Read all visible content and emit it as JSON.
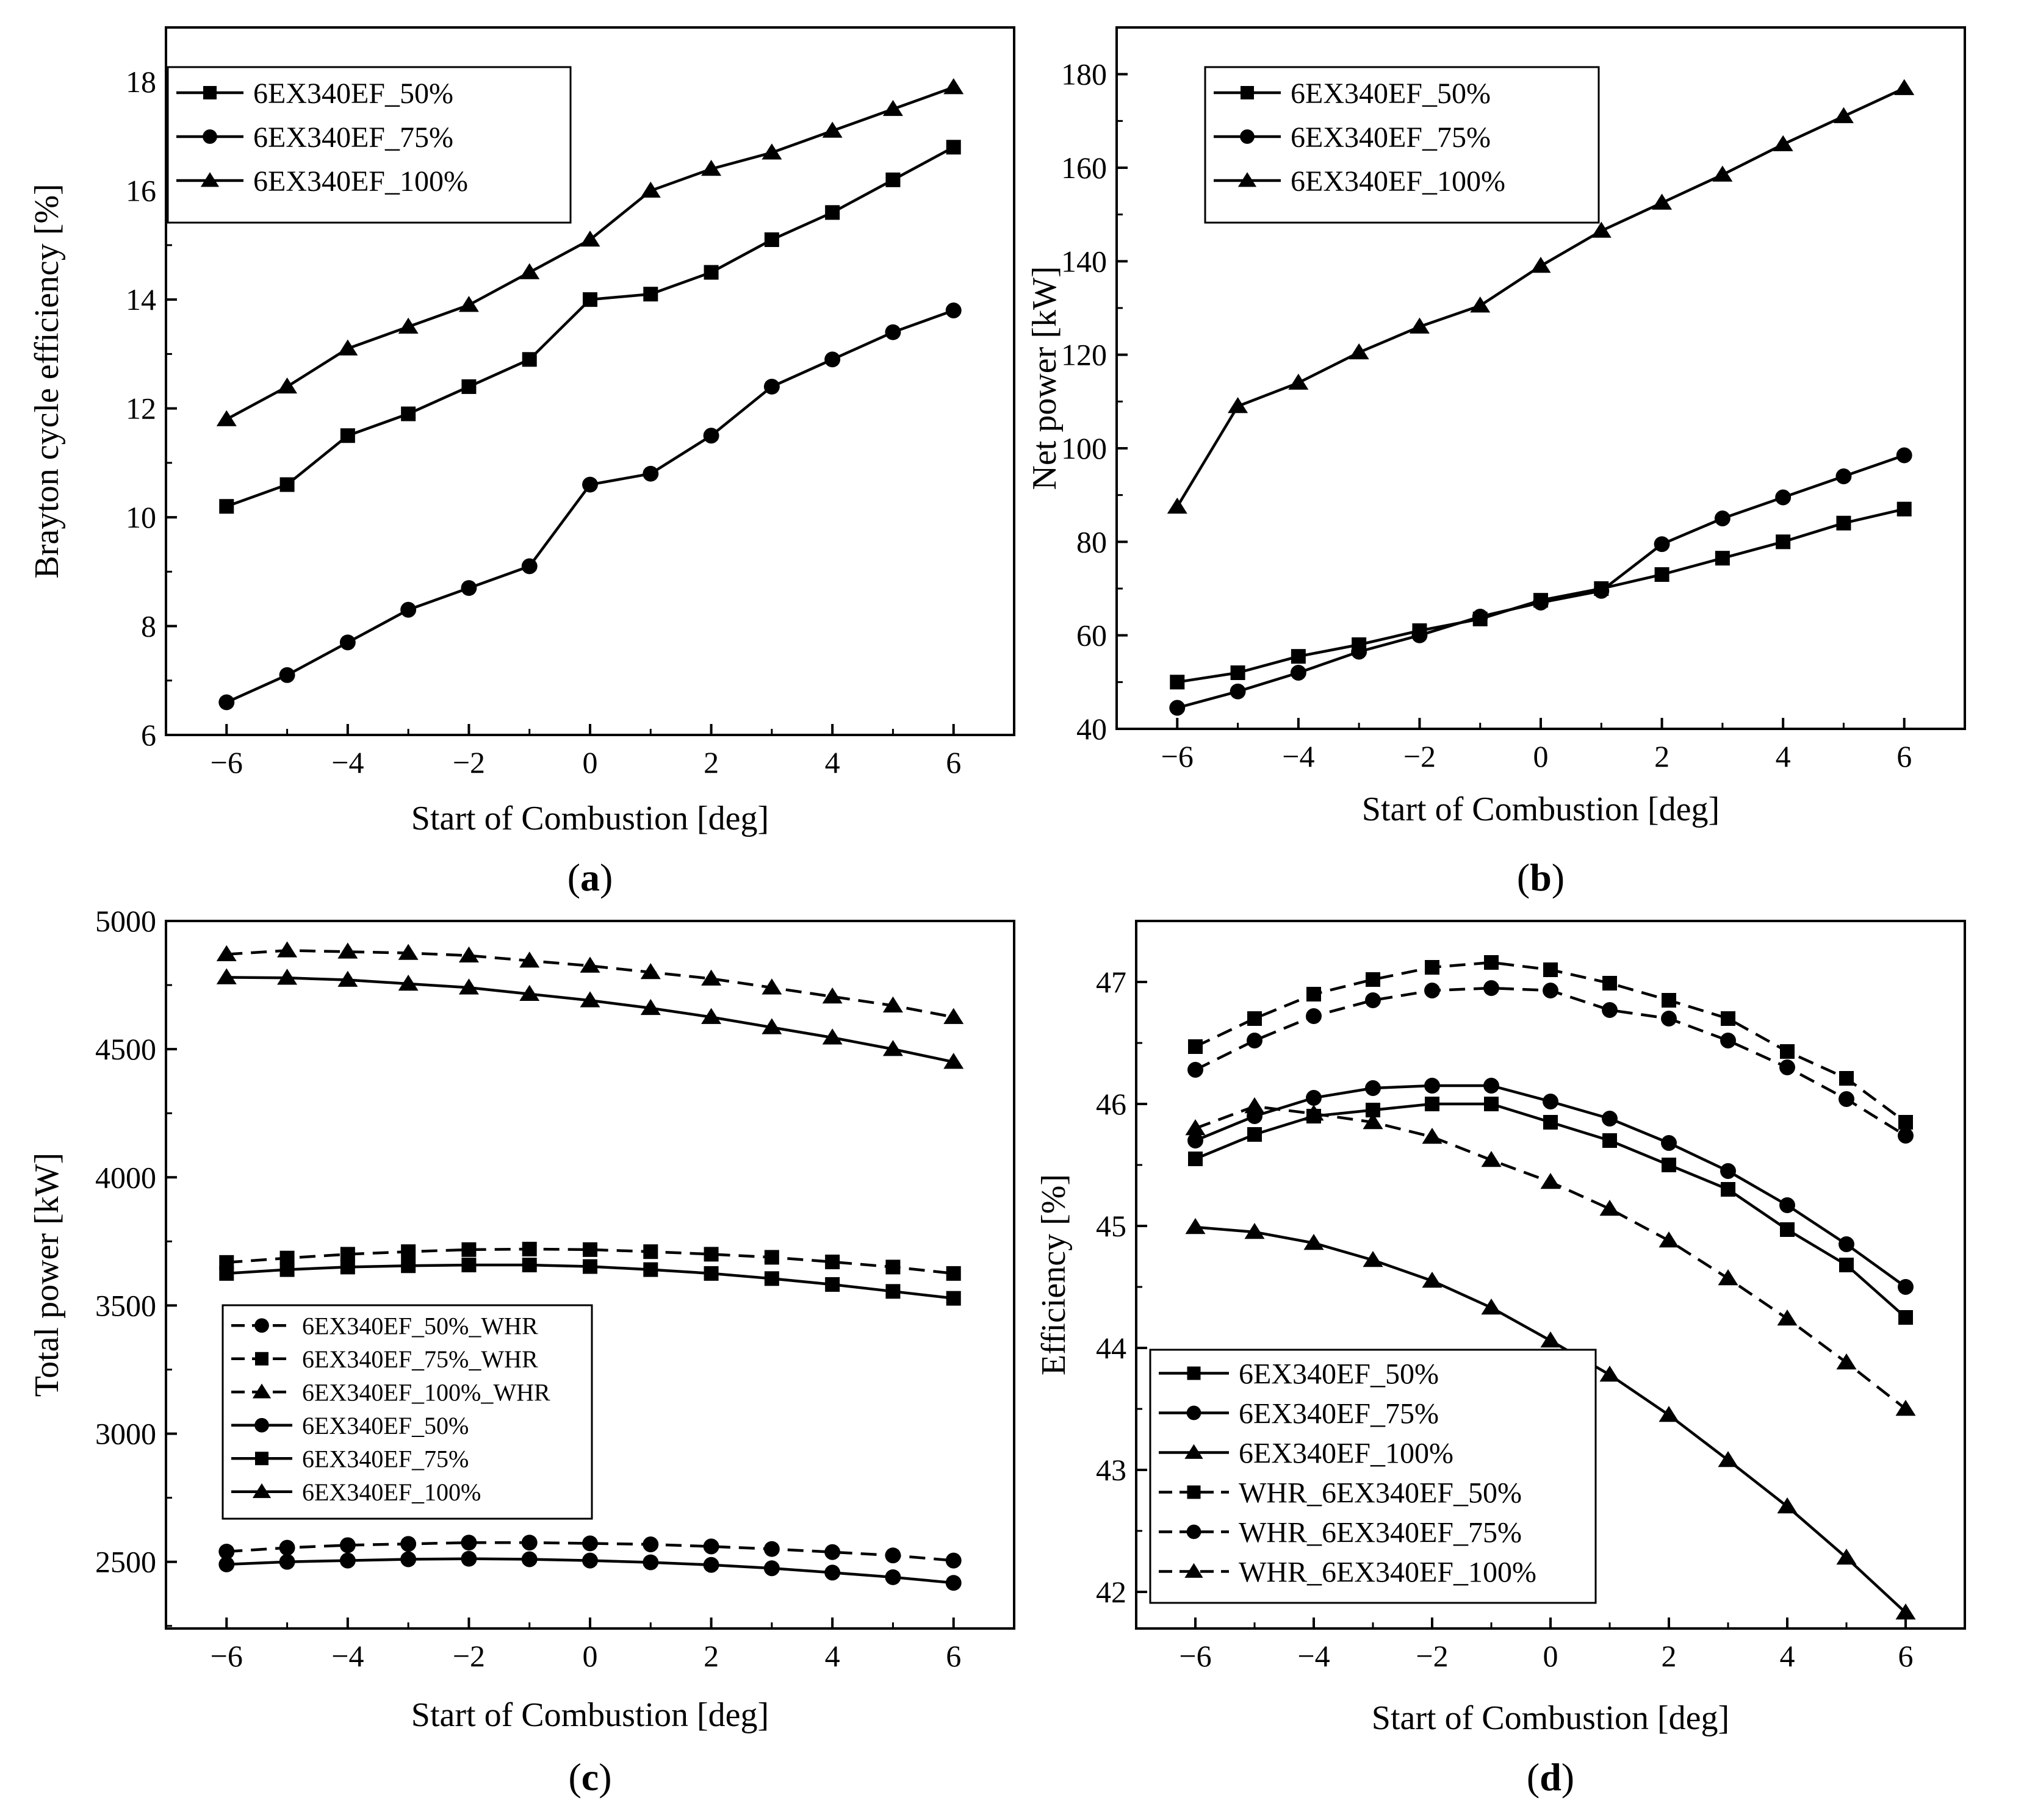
{
  "chart_data": [
    {
      "panel": "(a)",
      "panel_letter": "a",
      "type": "line",
      "xlabel": "Start of Combustion [deg]",
      "ylabel": "Brayton cycle efficiency [%]",
      "xlim": [
        -7,
        7
      ],
      "ylim": [
        6,
        19
      ],
      "xticks": [
        -6,
        -4,
        -2,
        0,
        2,
        4,
        6
      ],
      "yticks": [
        6,
        8,
        10,
        12,
        14,
        16,
        18
      ],
      "legend_position": "top-left",
      "x": [
        -6,
        -5,
        -4,
        -3,
        -2,
        -1,
        0,
        1,
        2,
        3,
        4,
        5,
        6
      ],
      "series": [
        {
          "name": "6EX340EF_50%",
          "marker": "square",
          "dash": "solid",
          "values": [
            10.2,
            10.6,
            11.5,
            11.9,
            12.4,
            12.9,
            14.0,
            14.1,
            14.5,
            15.1,
            15.6,
            16.2,
            16.8
          ]
        },
        {
          "name": "6EX340EF_75%",
          "marker": "circle",
          "dash": "solid",
          "values": [
            6.6,
            7.1,
            7.7,
            8.3,
            8.7,
            9.1,
            10.6,
            10.8,
            11.5,
            12.4,
            12.9,
            13.4,
            13.8
          ]
        },
        {
          "name": "6EX340EF_100%",
          "marker": "triangle",
          "dash": "solid",
          "values": [
            11.8,
            12.4,
            13.1,
            13.5,
            13.9,
            14.5,
            15.1,
            16.0,
            16.4,
            16.7,
            17.1,
            17.5,
            17.9
          ]
        }
      ]
    },
    {
      "panel": "(b)",
      "panel_letter": "b",
      "type": "line",
      "xlabel": "Start of Combustion [deg]",
      "ylabel": "Net power [kW]",
      "xlim": [
        -7,
        7
      ],
      "ylim": [
        40,
        190
      ],
      "xticks": [
        -6,
        -4,
        -2,
        0,
        2,
        4,
        6
      ],
      "yticks": [
        40,
        60,
        80,
        100,
        120,
        140,
        160,
        180
      ],
      "legend_position": "top-left",
      "x": [
        -6,
        -5,
        -4,
        -3,
        -2,
        -1,
        0,
        1,
        2,
        3,
        4,
        5,
        6
      ],
      "series": [
        {
          "name": "6EX340EF_50%",
          "marker": "square",
          "dash": "solid",
          "values": [
            50,
            52,
            55.5,
            58,
            61,
            63.5,
            67.5,
            70,
            73,
            76.5,
            80,
            84,
            87
          ]
        },
        {
          "name": "6EX340EF_75%",
          "marker": "circle",
          "dash": "solid",
          "values": [
            44.5,
            48,
            52,
            56.5,
            60,
            64,
            67,
            69.5,
            79.5,
            85,
            89.5,
            94,
            98.5
          ]
        },
        {
          "name": "6EX340EF_100%",
          "marker": "triangle",
          "dash": "solid",
          "values": [
            87.5,
            109,
            114,
            120.5,
            126,
            130.5,
            139,
            146.5,
            152.5,
            158.5,
            165,
            171,
            177
          ]
        }
      ]
    },
    {
      "panel": "(c)",
      "panel_letter": "c",
      "type": "line",
      "xlabel": "Start of Combustion [deg]",
      "ylabel": "Total power [kW]",
      "xlim": [
        -7,
        7
      ],
      "ylim": [
        2240,
        5000
      ],
      "xticks": [
        -6,
        -4,
        -2,
        0,
        2,
        4,
        6
      ],
      "yticks": [
        2500,
        3000,
        3500,
        4000,
        4500,
        5000
      ],
      "legend_position": "center-left",
      "x": [
        -6,
        -5,
        -4,
        -3,
        -2,
        -1,
        0,
        1,
        2,
        3,
        4,
        5,
        6
      ],
      "series": [
        {
          "name": "6EX340EF_50%_WHR",
          "marker": "circle",
          "dash": "dashed",
          "values": [
            2540,
            2555,
            2565,
            2570,
            2575,
            2575,
            2572,
            2568,
            2560,
            2550,
            2538,
            2525,
            2505
          ]
        },
        {
          "name": "6EX340EF_75%_WHR",
          "marker": "square",
          "dash": "dashed",
          "values": [
            3668,
            3685,
            3700,
            3710,
            3718,
            3720,
            3718,
            3710,
            3700,
            3688,
            3670,
            3650,
            3625
          ]
        },
        {
          "name": "6EX340EF_100%_WHR",
          "marker": "triangle",
          "dash": "dashed",
          "values": [
            4870,
            4885,
            4880,
            4875,
            4865,
            4845,
            4825,
            4800,
            4775,
            4740,
            4705,
            4670,
            4625
          ]
        },
        {
          "name": "6EX340EF_50%",
          "marker": "circle",
          "dash": "solid",
          "values": [
            2490,
            2500,
            2505,
            2510,
            2512,
            2510,
            2505,
            2498,
            2488,
            2475,
            2458,
            2440,
            2418
          ]
        },
        {
          "name": "6EX340EF_75%",
          "marker": "square",
          "dash": "solid",
          "values": [
            3625,
            3640,
            3650,
            3655,
            3658,
            3658,
            3652,
            3640,
            3625,
            3605,
            3582,
            3555,
            3528
          ]
        },
        {
          "name": "6EX340EF_100%",
          "marker": "triangle",
          "dash": "solid",
          "values": [
            4780,
            4778,
            4770,
            4755,
            4740,
            4715,
            4690,
            4660,
            4625,
            4585,
            4545,
            4500,
            4450
          ]
        }
      ]
    },
    {
      "panel": "(d)",
      "panel_letter": "d",
      "type": "line",
      "xlabel": "Start of Combustion [deg]",
      "ylabel": "Efficiency [%]",
      "xlim": [
        -7,
        7
      ],
      "ylim": [
        41.7,
        47.5
      ],
      "xticks": [
        -6,
        -4,
        -2,
        0,
        2,
        4,
        6
      ],
      "yticks": [
        42,
        43,
        44,
        45,
        46,
        47
      ],
      "legend_position": "bottom-left",
      "x": [
        -6,
        -5,
        -4,
        -3,
        -2,
        -1,
        0,
        1,
        2,
        3,
        4,
        5,
        6
      ],
      "series": [
        {
          "name": "6EX340EF_50%",
          "marker": "square",
          "dash": "solid",
          "values": [
            45.55,
            45.75,
            45.9,
            45.95,
            46.0,
            46.0,
            45.85,
            45.7,
            45.5,
            45.3,
            44.97,
            44.68,
            44.25
          ]
        },
        {
          "name": "6EX340EF_75%",
          "marker": "circle",
          "dash": "solid",
          "values": [
            45.7,
            45.9,
            46.05,
            46.13,
            46.15,
            46.15,
            46.02,
            45.88,
            45.68,
            45.45,
            45.17,
            44.85,
            44.5
          ]
        },
        {
          "name": "6EX340EF_100%",
          "marker": "triangle",
          "dash": "solid",
          "values": [
            44.99,
            44.95,
            44.86,
            44.72,
            44.55,
            44.33,
            44.06,
            43.78,
            43.45,
            43.08,
            42.7,
            42.28,
            41.83
          ]
        },
        {
          "name": "WHR_6EX340EF_50%",
          "marker": "square",
          "dash": "dashed",
          "values": [
            46.47,
            46.7,
            46.9,
            47.02,
            47.12,
            47.16,
            47.1,
            46.99,
            46.85,
            46.7,
            46.43,
            46.21,
            45.85
          ]
        },
        {
          "name": "WHR_6EX340EF_75%",
          "marker": "circle",
          "dash": "dashed",
          "values": [
            46.28,
            46.52,
            46.72,
            46.85,
            46.93,
            46.95,
            46.93,
            46.77,
            46.7,
            46.52,
            46.3,
            46.04,
            45.74
          ]
        },
        {
          "name": "WHR_6EX340EF_100%",
          "marker": "triangle",
          "dash": "dashed",
          "values": [
            45.8,
            45.98,
            45.92,
            45.85,
            45.73,
            45.54,
            45.36,
            45.14,
            44.88,
            44.57,
            44.24,
            43.88,
            43.5
          ]
        }
      ]
    }
  ]
}
